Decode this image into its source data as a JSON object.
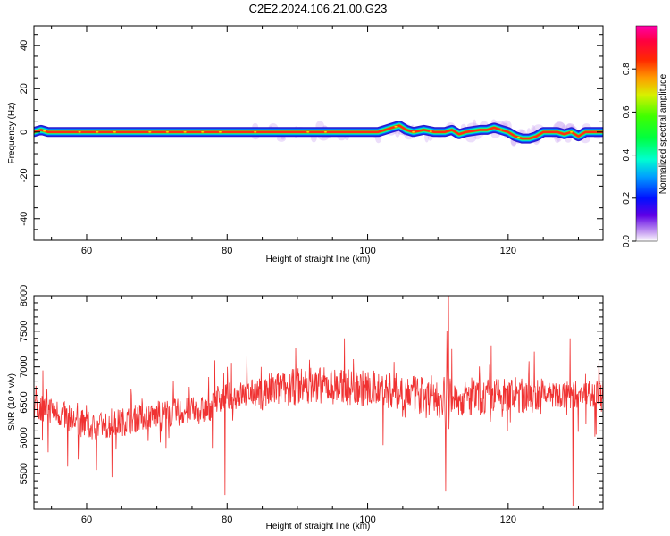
{
  "title": "C2E2.2024.106.21.00.G23",
  "chart_data": [
    {
      "type": "heatmap",
      "xlabel": "Height of straight line (km)",
      "ylabel": "Frequency (Hz)",
      "xlim": [
        52.5,
        133.5
      ],
      "ylim": [
        -50,
        49
      ],
      "xticks": [
        60,
        80,
        100,
        120
      ],
      "yticks": [
        -40,
        -20,
        0,
        20,
        40
      ],
      "colorbar": {
        "label": "Normalized spectral amplitude",
        "range": [
          0,
          1
        ],
        "ticks": [
          "0.0",
          "0.2",
          "0.4",
          "0.6",
          "0.8"
        ]
      },
      "ridge": {
        "x": [
          52.5,
          53.5,
          54.5,
          56,
          60,
          70,
          80,
          84,
          86,
          88,
          90,
          92,
          96,
          98,
          100,
          101.5,
          102.5,
          103.5,
          104.5,
          105.5,
          106.5,
          108,
          109.5,
          111,
          112,
          113,
          114,
          116,
          117,
          118,
          119,
          120,
          121,
          122,
          123,
          124,
          125,
          127,
          128,
          129,
          130,
          131,
          133.5
        ],
        "y": [
          0,
          1,
          0,
          0,
          0,
          0,
          0,
          0,
          0,
          0,
          0,
          0,
          0,
          0,
          0,
          0,
          1,
          2,
          3,
          1,
          0,
          1,
          0,
          0,
          1,
          -1,
          0,
          1,
          1,
          2,
          1,
          0,
          -2,
          -3,
          -3,
          -2,
          0,
          0,
          -1,
          0,
          -2,
          0,
          0
        ]
      }
    },
    {
      "type": "line",
      "xlabel": "Height of straight line (km)",
      "ylabel": "SNR (10 * v/v)",
      "xlim": [
        52.5,
        133.5
      ],
      "ylim": [
        5000,
        8000
      ],
      "xticks": [
        60,
        80,
        100,
        120
      ],
      "yticks": [
        5500,
        6000,
        6500,
        7000,
        7500,
        8000
      ],
      "color": "#f03232",
      "trend": {
        "x": [
          52.5,
          55,
          58,
          61,
          64,
          68,
          72,
          77.5,
          78,
          85,
          92,
          100,
          105,
          110,
          111.5,
          113,
          120,
          128,
          133.5
        ],
        "y": [
          6450,
          6400,
          6250,
          6150,
          6200,
          6300,
          6350,
          6400,
          6550,
          6650,
          6750,
          6700,
          6650,
          6550,
          6500,
          6550,
          6600,
          6600,
          6650
        ]
      },
      "spikes": [
        {
          "x": 53.8,
          "y": 6950
        },
        {
          "x": 54.5,
          "y": 5800
        },
        {
          "x": 57.3,
          "y": 5600
        },
        {
          "x": 58.8,
          "y": 5700
        },
        {
          "x": 61.4,
          "y": 5550
        },
        {
          "x": 63.6,
          "y": 5450
        },
        {
          "x": 71.3,
          "y": 5850
        },
        {
          "x": 77.9,
          "y": 5850
        },
        {
          "x": 79.7,
          "y": 5200
        },
        {
          "x": 91.7,
          "y": 7100
        },
        {
          "x": 96.7,
          "y": 7400
        },
        {
          "x": 102.2,
          "y": 5900
        },
        {
          "x": 111.1,
          "y": 5250
        },
        {
          "x": 111.3,
          "y": 7500
        },
        {
          "x": 111.5,
          "y": 8000
        },
        {
          "x": 112.0,
          "y": 7250
        },
        {
          "x": 117.6,
          "y": 7300
        },
        {
          "x": 128.8,
          "y": 7400
        },
        {
          "x": 129.2,
          "y": 5050
        },
        {
          "x": 132.5,
          "y": 6050
        }
      ]
    }
  ]
}
